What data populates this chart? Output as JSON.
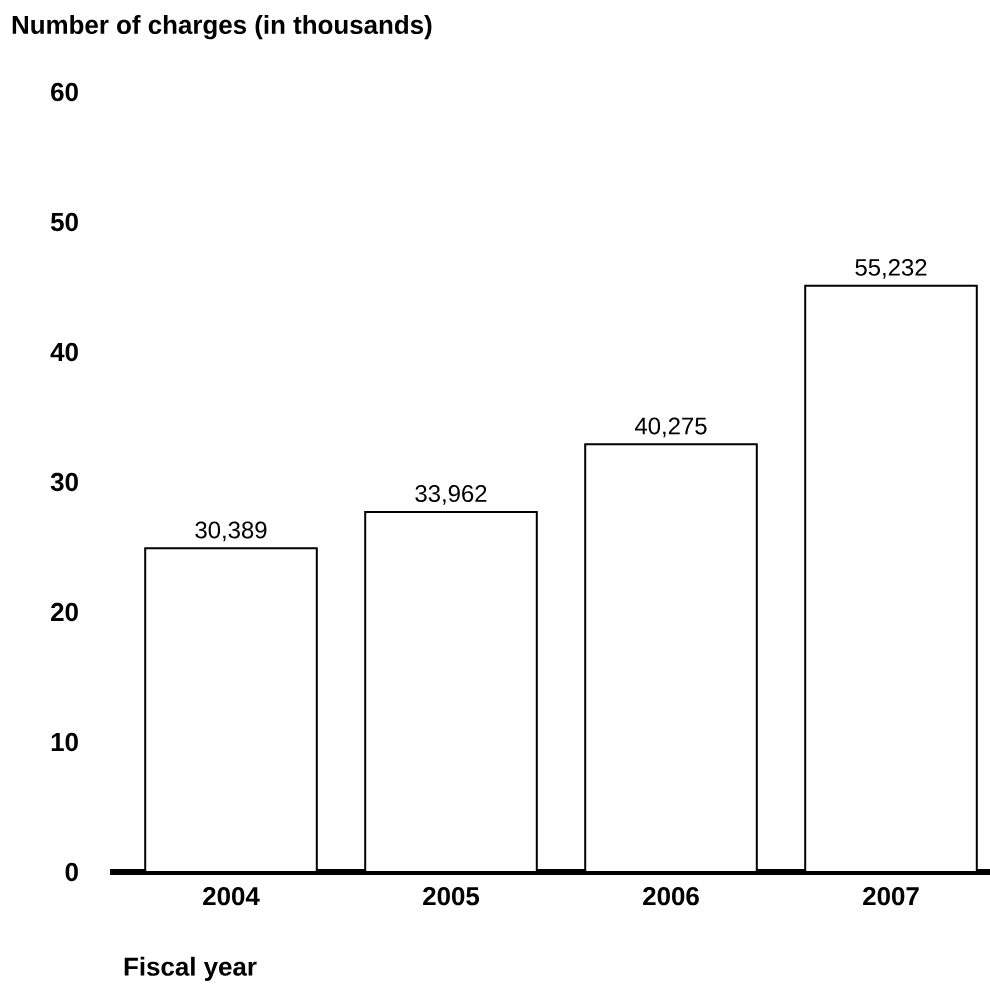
{
  "chart_data": {
    "type": "bar",
    "ylabel": "Number of charges (in thousands)",
    "xlabel": "Fiscal year",
    "categories": [
      "2004",
      "2005",
      "2006",
      "2007"
    ],
    "values": [
      24.9,
      27.7,
      32.9,
      45.1
    ],
    "annotations": [
      {
        "text": "30,389",
        "x": "2004",
        "y": 24.9
      },
      {
        "text": "33,962",
        "x": "2005",
        "y": 27.7
      },
      {
        "text": "40,275",
        "x": "2006",
        "y": 32.9
      },
      {
        "text": "55,232",
        "x": "2007",
        "y": 45.1
      }
    ],
    "color": "#ffffff",
    "ylim": [
      0,
      60
    ],
    "yticks": [
      0,
      10,
      20,
      30,
      40,
      50,
      60
    ],
    "grid": false
  }
}
